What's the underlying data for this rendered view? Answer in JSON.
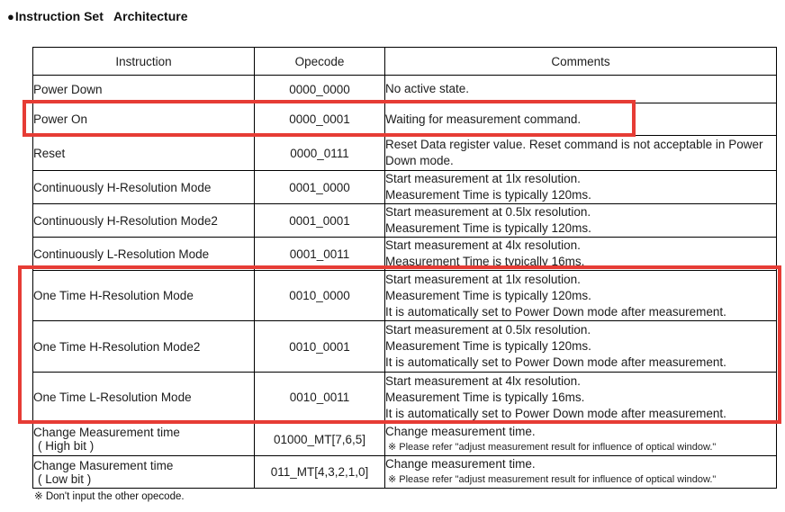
{
  "title": {
    "bullet": "●",
    "text": "Instruction Set   Architecture"
  },
  "colors": {
    "highlight": "#e63c35",
    "border": "#000000"
  },
  "table": {
    "headers": [
      "Instruction",
      "Opecode",
      "Comments"
    ],
    "rows": [
      {
        "instruction": "Power Down",
        "opcode": "0000_0000",
        "c1": "No active state."
      },
      {
        "instruction": "Power On",
        "opcode": "0000_0001",
        "c1": "Waiting for measurement command."
      },
      {
        "instruction": "Reset",
        "opcode": "0000_0111",
        "c1": "Reset Data register value. Reset command is not acceptable in Power Down mode."
      },
      {
        "instruction": "Continuously H-Resolution Mode",
        "opcode": "0001_0000",
        "c1": "Start measurement at 1lx resolution.",
        "c2": "Measurement Time is typically 120ms."
      },
      {
        "instruction": "Continuously H-Resolution Mode2",
        "opcode": "0001_0001",
        "c1": "Start measurement at 0.5lx resolution.",
        "c2": "Measurement Time is typically 120ms."
      },
      {
        "instruction": "Continuously L-Resolution Mode",
        "opcode": "0001_0011",
        "c1": "Start measurement at 4lx resolution.",
        "c2": "Measurement Time is typically 16ms."
      },
      {
        "instruction": "One Time H-Resolution Mode",
        "opcode": "0010_0000",
        "c1": "Start measurement at 1lx resolution.",
        "c2": "Measurement Time is typically 120ms.",
        "c3": "It is automatically set to Power Down mode after measurement."
      },
      {
        "instruction": "One Time H-Resolution Mode2",
        "opcode": "0010_0001",
        "c1": "Start measurement at 0.5lx resolution.",
        "c2": "Measurement Time is typically 120ms.",
        "c3": "It is automatically set to Power Down mode after measurement."
      },
      {
        "instruction": "One Time L-Resolution Mode",
        "opcode": "0010_0011",
        "c1": "Start measurement at 4lx resolution.",
        "c2": "Measurement Time is typically 16ms.",
        "c3": "It is automatically set to Power Down mode after measurement."
      },
      {
        "instruction": "Change Measurement time",
        "instruction2": "( High bit )",
        "opcode": "01000_MT[7,6,5]",
        "c1": "Change measurement time.",
        "note": "※ Please refer \"adjust measurement result for influence of optical window.\""
      },
      {
        "instruction": "Change Masurement time",
        "instruction2": "( Low bit )",
        "opcode": "011_MT[4,3,2,1,0]",
        "c1": "Change measurement time.",
        "note": "※ Please refer \"adjust measurement result for influence of optical window.\""
      }
    ]
  },
  "footnote": "※ Don't input the other opecode."
}
